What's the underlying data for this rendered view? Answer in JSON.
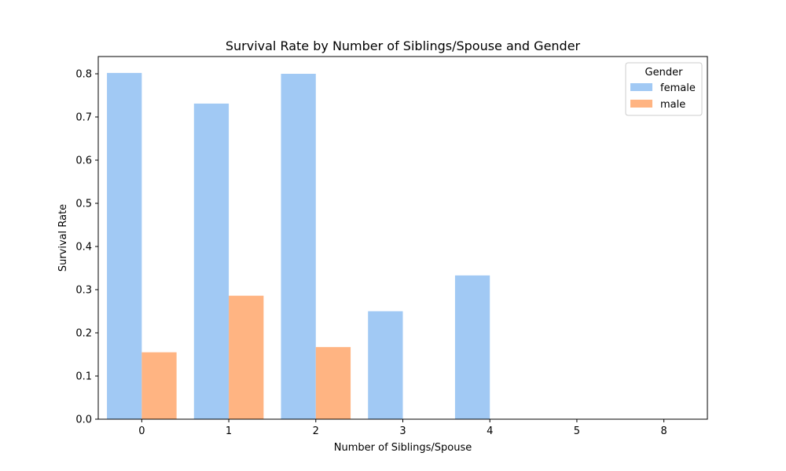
{
  "chart_data": {
    "type": "bar",
    "title": "Survival Rate by Number of Siblings/Spouse and Gender",
    "xlabel": "Number of Siblings/Spouse",
    "ylabel": "Survival Rate",
    "categories": [
      "0",
      "1",
      "2",
      "3",
      "4",
      "5",
      "8"
    ],
    "ylim": [
      0,
      0.84
    ],
    "yticks": [
      "0.0",
      "0.1",
      "0.2",
      "0.3",
      "0.4",
      "0.5",
      "0.6",
      "0.7",
      "0.8"
    ],
    "grid": false,
    "legend": {
      "title": "Gender",
      "placement": "top-right"
    },
    "series": [
      {
        "name": "female",
        "color": "#a1c9f4",
        "values": [
          0.802,
          0.731,
          0.8,
          0.25,
          0.333,
          0.0,
          0.0
        ]
      },
      {
        "name": "male",
        "color": "#ffb482",
        "values": [
          0.155,
          0.286,
          0.167,
          0.0,
          0.0,
          0.0,
          0.0
        ]
      }
    ]
  }
}
